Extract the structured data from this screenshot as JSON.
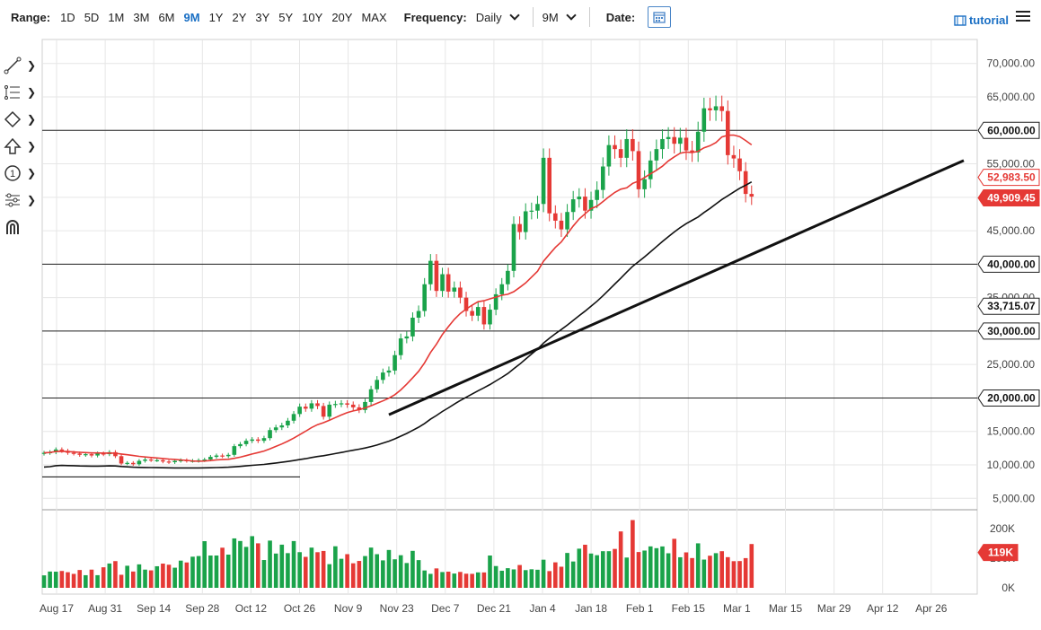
{
  "toolbar": {
    "range_label": "Range:",
    "ranges": [
      "1D",
      "5D",
      "1M",
      "3M",
      "6M",
      "9M",
      "1Y",
      "2Y",
      "3Y",
      "5Y",
      "10Y",
      "20Y",
      "MAX"
    ],
    "active_range": "9M",
    "frequency_label": "Frequency:",
    "frequency_value": "Daily",
    "period_value": "9M",
    "date_label": "Date:",
    "tutorial_label": "tutorial"
  },
  "tools": [
    "line-draw-icon",
    "fib-icon",
    "shape-icon",
    "arrow-up-icon",
    "number-one-icon",
    "indicator-icon",
    "magnet-icon"
  ],
  "colors": {
    "up": "#1aa34a",
    "down": "#e53935",
    "sma_fast": "#e53935",
    "sma_slow": "#111111",
    "active": "#1a6fc4"
  },
  "chart_data": {
    "type": "candlestick",
    "x_labels": [
      "Aug 17",
      "Aug 31",
      "Sep 14",
      "Sep 28",
      "Oct 12",
      "Oct 26",
      "Nov 9",
      "Nov 23",
      "Dec 7",
      "Dec 21",
      "Jan 4",
      "Jan 18",
      "Feb 1",
      "Feb 15",
      "Mar 1",
      "Mar 15",
      "Mar 29",
      "Apr 12",
      "Apr 26"
    ],
    "y_ticks": [
      "70,000.00",
      "65,000.00",
      "60,000.00",
      "55,000.00",
      "50,000.00",
      "45,000.00",
      "40,000.00",
      "35,000.00",
      "30,000.00",
      "25,000.00",
      "20,000.00",
      "15,000.00",
      "10,000.00",
      "5,000.00"
    ],
    "y_tick_values": [
      70000,
      65000,
      60000,
      55000,
      50000,
      45000,
      40000,
      35000,
      30000,
      25000,
      20000,
      15000,
      10000,
      5000
    ],
    "ylim": [
      5000,
      70000
    ],
    "close_series": [
      11800,
      11900,
      12300,
      12100,
      11800,
      11700,
      11500,
      11600,
      11400,
      11700,
      11600,
      11900,
      11300,
      10200,
      10300,
      10100,
      10600,
      10800,
      10700,
      10700,
      10500,
      10400,
      10600,
      10700,
      10600,
      10600,
      10700,
      10800,
      11200,
      11400,
      11300,
      11500,
      12800,
      13100,
      13600,
      13800,
      13600,
      14000,
      15200,
      15600,
      15900,
      16600,
      17600,
      18700,
      18400,
      19200,
      18800,
      17200,
      19000,
      19100,
      19200,
      19000,
      18600,
      18200,
      19400,
      21300,
      22700,
      23800,
      24100,
      26400,
      28900,
      29200,
      32000,
      33000,
      37000,
      40500,
      36000,
      38500,
      35900,
      36500,
      35000,
      33000,
      32300,
      33600,
      31000,
      33200,
      35500,
      37000,
      39000,
      46000,
      44800,
      47900,
      48000,
      49000,
      55900,
      47600,
      46500,
      45200,
      47800,
      49700,
      50100,
      48000,
      49600,
      51100,
      54600,
      57800,
      57200,
      55900,
      58700,
      56900,
      51200,
      52700,
      55500,
      57200,
      58700,
      59000,
      58000,
      58900,
      57000,
      56700,
      59800,
      63300,
      63000,
      63600,
      62900,
      56300,
      55800,
      53900,
      50500,
      50100
    ],
    "volume_yticks": [
      "200K",
      "100K",
      "0K"
    ],
    "volume_ylim": [
      0,
      260000
    ],
    "volume_sample": [
      60000,
      55000,
      70000,
      58000,
      62000,
      50000,
      66000,
      48000,
      64000,
      52000,
      70000,
      110000,
      90000,
      60000,
      75000,
      68000,
      82000,
      70000,
      64000,
      78000,
      95000,
      80000,
      86000,
      92000,
      120000,
      105000,
      140000,
      160000,
      130000,
      115000,
      150000,
      125000,
      175000,
      190000,
      140000,
      230000,
      150000,
      130000,
      160000,
      145000,
      150000,
      135000,
      170000,
      130000,
      120000,
      140000,
      150000,
      125000,
      110000,
      140000,
      130000,
      115000,
      100000,
      95000,
      120000,
      150000,
      120000,
      110000,
      130000,
      125000,
      110000,
      118000,
      125000,
      119000
    ],
    "horizontal_levels": [
      60000,
      40000,
      30000,
      20000
    ],
    "badges": [
      {
        "label": "60,000.00",
        "value": 60000,
        "style": "outline"
      },
      {
        "label": "52,983.50",
        "value": 52983.5,
        "style": "red-outline"
      },
      {
        "label": "49,909.45",
        "value": 49909.45,
        "style": "red-fill"
      },
      {
        "label": "40,000.00",
        "value": 40000,
        "style": "outline"
      },
      {
        "label": "33,715.07",
        "value": 33715.07,
        "style": "outline"
      },
      {
        "label": "30,000.00",
        "value": 30000,
        "style": "outline"
      },
      {
        "label": "20,000.00",
        "value": 20000,
        "style": "outline"
      }
    ],
    "volume_badge": "119K",
    "trendline": {
      "start": [
        58,
        17500
      ],
      "end": [
        119,
        55500
      ]
    },
    "bottom_line_value": 8200,
    "sma_fast_last": 52983.5,
    "sma_slow_last": 33715.07,
    "grid": true,
    "legend": "none"
  }
}
